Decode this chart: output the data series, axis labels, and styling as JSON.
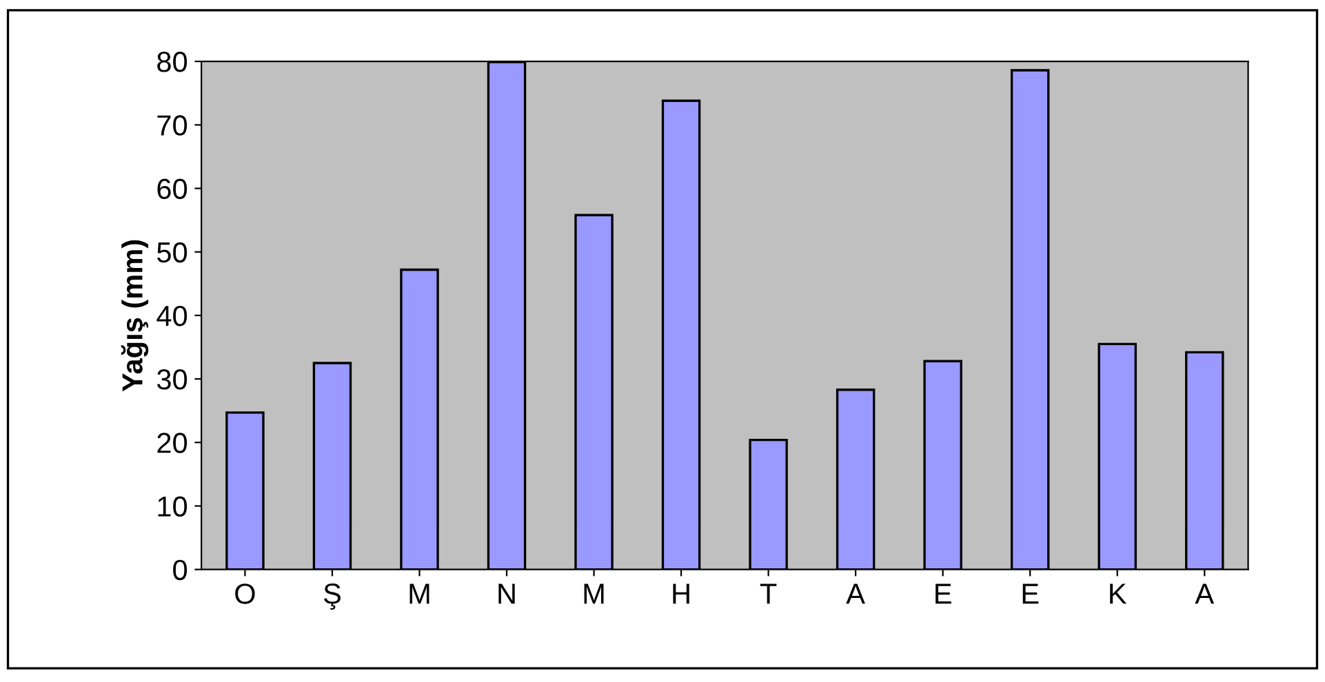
{
  "chart_data": {
    "type": "bar",
    "ylabel": "Yağış (mm)",
    "categories": [
      "O",
      "Ş",
      "M",
      "N",
      "M",
      "H",
      "T",
      "A",
      "E",
      "E",
      "K",
      "A"
    ],
    "values": [
      24.7,
      32.5,
      47.2,
      79.9,
      55.8,
      73.8,
      20.4,
      28.3,
      32.8,
      78.6,
      35.5,
      34.2
    ],
    "color": "#9999ff",
    "ylim": [
      0,
      80
    ],
    "yticks": [
      0,
      10,
      20,
      30,
      40,
      50,
      60,
      70,
      80
    ],
    "grid": false
  }
}
